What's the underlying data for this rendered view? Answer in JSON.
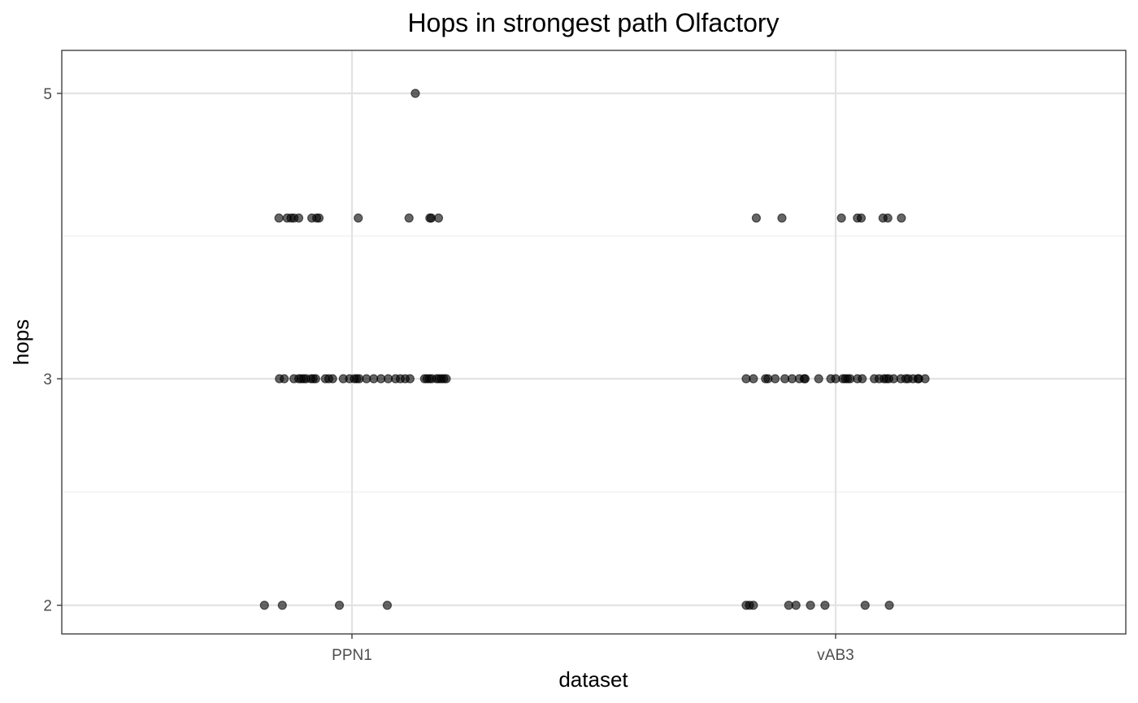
{
  "chart_data": {
    "type": "scatter",
    "title": "Hops in strongest path Olfactory",
    "xlabel": "dataset",
    "ylabel": "hops",
    "categories": [
      "PPN1",
      "vAB3"
    ],
    "y_scale": "log",
    "ylim": [
      1.9,
      5.4
    ],
    "y_ticks": [
      2,
      3,
      5
    ],
    "grid": true,
    "legend": "none",
    "point_color": "#000000",
    "point_opacity": 0.6,
    "jitter": "horizontal",
    "series": [
      {
        "category": "PPN1",
        "points": [
          {
            "x": -0.181,
            "y": 2
          },
          {
            "x": -0.144,
            "y": 2
          },
          {
            "x": -0.026,
            "y": 2
          },
          {
            "x": 0.073,
            "y": 2
          },
          {
            "x": -0.15,
            "y": 3
          },
          {
            "x": -0.14,
            "y": 3
          },
          {
            "x": -0.12,
            "y": 3
          },
          {
            "x": -0.11,
            "y": 3
          },
          {
            "x": -0.105,
            "y": 3
          },
          {
            "x": -0.1,
            "y": 3
          },
          {
            "x": -0.095,
            "y": 3
          },
          {
            "x": -0.085,
            "y": 3
          },
          {
            "x": -0.08,
            "y": 3
          },
          {
            "x": -0.075,
            "y": 3
          },
          {
            "x": -0.055,
            "y": 3
          },
          {
            "x": -0.048,
            "y": 3
          },
          {
            "x": -0.04,
            "y": 3
          },
          {
            "x": -0.018,
            "y": 3
          },
          {
            "x": -0.005,
            "y": 3
          },
          {
            "x": 0.005,
            "y": 3
          },
          {
            "x": 0.01,
            "y": 3
          },
          {
            "x": 0.015,
            "y": 3
          },
          {
            "x": 0.03,
            "y": 3
          },
          {
            "x": 0.045,
            "y": 3
          },
          {
            "x": 0.06,
            "y": 3
          },
          {
            "x": 0.075,
            "y": 3
          },
          {
            "x": 0.09,
            "y": 3
          },
          {
            "x": 0.1,
            "y": 3
          },
          {
            "x": 0.11,
            "y": 3
          },
          {
            "x": 0.12,
            "y": 3
          },
          {
            "x": 0.15,
            "y": 3
          },
          {
            "x": 0.155,
            "y": 3
          },
          {
            "x": 0.16,
            "y": 3
          },
          {
            "x": 0.165,
            "y": 3
          },
          {
            "x": 0.175,
            "y": 3
          },
          {
            "x": 0.18,
            "y": 3
          },
          {
            "x": 0.185,
            "y": 3
          },
          {
            "x": 0.19,
            "y": 3
          },
          {
            "x": 0.195,
            "y": 3
          },
          {
            "x": -0.151,
            "y": 4
          },
          {
            "x": -0.134,
            "y": 4
          },
          {
            "x": -0.126,
            "y": 4
          },
          {
            "x": -0.12,
            "y": 4
          },
          {
            "x": -0.11,
            "y": 4
          },
          {
            "x": -0.083,
            "y": 4
          },
          {
            "x": -0.073,
            "y": 4
          },
          {
            "x": -0.068,
            "y": 4
          },
          {
            "x": 0.013,
            "y": 4
          },
          {
            "x": 0.118,
            "y": 4
          },
          {
            "x": 0.161,
            "y": 4
          },
          {
            "x": 0.164,
            "y": 4
          },
          {
            "x": 0.179,
            "y": 4
          },
          {
            "x": 0.131,
            "y": 5
          }
        ]
      },
      {
        "category": "vAB3",
        "points": [
          {
            "x": -0.185,
            "y": 2
          },
          {
            "x": -0.178,
            "y": 2
          },
          {
            "x": -0.17,
            "y": 2
          },
          {
            "x": -0.097,
            "y": 2
          },
          {
            "x": -0.082,
            "y": 2
          },
          {
            "x": -0.052,
            "y": 2
          },
          {
            "x": -0.022,
            "y": 2
          },
          {
            "x": 0.061,
            "y": 2
          },
          {
            "x": 0.111,
            "y": 2
          },
          {
            "x": -0.185,
            "y": 3
          },
          {
            "x": -0.17,
            "y": 3
          },
          {
            "x": -0.145,
            "y": 3
          },
          {
            "x": -0.14,
            "y": 3
          },
          {
            "x": -0.125,
            "y": 3
          },
          {
            "x": -0.105,
            "y": 3
          },
          {
            "x": -0.09,
            "y": 3
          },
          {
            "x": -0.075,
            "y": 3
          },
          {
            "x": -0.065,
            "y": 3
          },
          {
            "x": -0.063,
            "y": 3
          },
          {
            "x": -0.035,
            "y": 3
          },
          {
            "x": -0.01,
            "y": 3
          },
          {
            "x": 0.0,
            "y": 3
          },
          {
            "x": 0.015,
            "y": 3
          },
          {
            "x": 0.02,
            "y": 3
          },
          {
            "x": 0.025,
            "y": 3
          },
          {
            "x": 0.03,
            "y": 3
          },
          {
            "x": 0.045,
            "y": 3
          },
          {
            "x": 0.055,
            "y": 3
          },
          {
            "x": 0.08,
            "y": 3
          },
          {
            "x": 0.09,
            "y": 3
          },
          {
            "x": 0.1,
            "y": 3
          },
          {
            "x": 0.105,
            "y": 3
          },
          {
            "x": 0.11,
            "y": 3
          },
          {
            "x": 0.12,
            "y": 3
          },
          {
            "x": 0.135,
            "y": 3
          },
          {
            "x": 0.145,
            "y": 3
          },
          {
            "x": 0.15,
            "y": 3
          },
          {
            "x": 0.16,
            "y": 3
          },
          {
            "x": 0.17,
            "y": 3
          },
          {
            "x": 0.172,
            "y": 3
          },
          {
            "x": 0.185,
            "y": 3
          },
          {
            "x": -0.164,
            "y": 4
          },
          {
            "x": -0.111,
            "y": 4
          },
          {
            "x": 0.012,
            "y": 4
          },
          {
            "x": 0.045,
            "y": 4
          },
          {
            "x": 0.053,
            "y": 4
          },
          {
            "x": 0.098,
            "y": 4
          },
          {
            "x": 0.108,
            "y": 4
          },
          {
            "x": 0.136,
            "y": 4
          }
        ]
      }
    ]
  }
}
